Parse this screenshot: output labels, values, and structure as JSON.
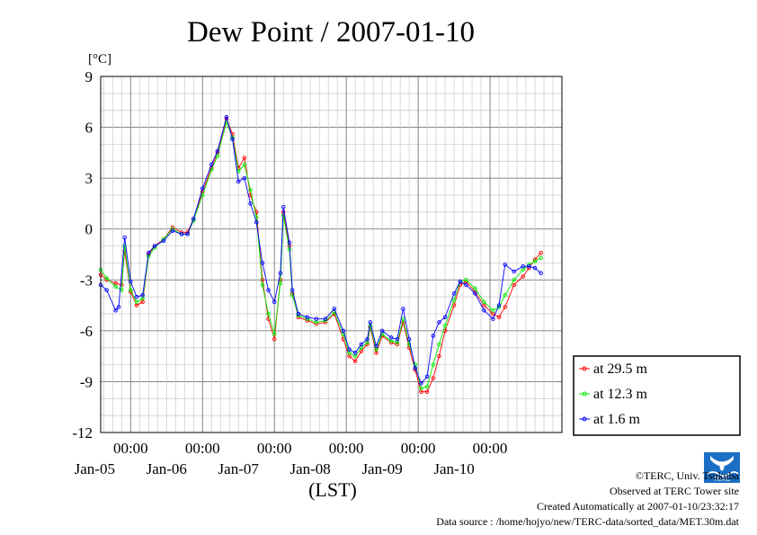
{
  "chart_data": {
    "type": "line",
    "title": "Dew Point / 2007-01-10",
    "ylabel": "[°C]",
    "xlabel": "(LST)",
    "ylim": [
      -12,
      9
    ],
    "yticks": [
      9,
      6,
      3,
      0,
      -3,
      -6,
      -9,
      -12
    ],
    "xlim": [
      "2007-01-04 14:00",
      "2007-01-11 00:00"
    ],
    "x_time_ticks": [
      {
        "time": "00:00",
        "date": "Jan-05"
      },
      {
        "time": "00:00",
        "date": "Jan-06"
      },
      {
        "time": "00:00",
        "date": "Jan-07"
      },
      {
        "time": "00:00",
        "date": "Jan-08"
      },
      {
        "time": "00:00",
        "date": "Jan-09"
      },
      {
        "time": "00:00",
        "date": "Jan-10"
      }
    ],
    "grid": true,
    "legend_position": "right",
    "series": [
      {
        "name": "at 29.5 m",
        "color": "#ff0000",
        "points": [
          [
            "2007-01-04 14:00",
            -2.7
          ],
          [
            "2007-01-04 16:00",
            -3.0
          ],
          [
            "2007-01-04 19:00",
            -3.2
          ],
          [
            "2007-01-04 21:00",
            -3.3
          ],
          [
            "2007-01-04 22:00",
            -1.3
          ],
          [
            "2007-01-05 00:00",
            -3.7
          ],
          [
            "2007-01-05 02:00",
            -4.5
          ],
          [
            "2007-01-05 04:00",
            -4.3
          ],
          [
            "2007-01-05 06:00",
            -1.5
          ],
          [
            "2007-01-05 08:00",
            -1.0
          ],
          [
            "2007-01-05 11:00",
            -0.6
          ],
          [
            "2007-01-05 14:00",
            0.1
          ],
          [
            "2007-01-05 17:00",
            -0.2
          ],
          [
            "2007-01-05 19:00",
            -0.2
          ],
          [
            "2007-01-05 21:00",
            0.6
          ],
          [
            "2007-01-06 00:00",
            2.2
          ],
          [
            "2007-01-06 03:00",
            3.6
          ],
          [
            "2007-01-06 05:00",
            4.5
          ],
          [
            "2007-01-06 08:00",
            6.5
          ],
          [
            "2007-01-06 10:00",
            5.6
          ],
          [
            "2007-01-06 12:00",
            3.6
          ],
          [
            "2007-01-06 14:00",
            4.2
          ],
          [
            "2007-01-06 16:00",
            2.0
          ],
          [
            "2007-01-06 18:00",
            1.0
          ],
          [
            "2007-01-06 20:00",
            -3.0
          ],
          [
            "2007-01-06 22:00",
            -5.3
          ],
          [
            "2007-01-07 00:00",
            -6.5
          ],
          [
            "2007-01-07 02:00",
            -3.0
          ],
          [
            "2007-01-07 03:00",
            1.0
          ],
          [
            "2007-01-07 05:00",
            -1.0
          ],
          [
            "2007-01-07 06:00",
            -3.8
          ],
          [
            "2007-01-07 08:00",
            -5.2
          ],
          [
            "2007-01-07 11:00",
            -5.4
          ],
          [
            "2007-01-07 14:00",
            -5.6
          ],
          [
            "2007-01-07 17:00",
            -5.5
          ],
          [
            "2007-01-07 20:00",
            -5.0
          ],
          [
            "2007-01-07 23:00",
            -6.5
          ],
          [
            "2007-01-08 01:00",
            -7.5
          ],
          [
            "2007-01-08 03:00",
            -7.8
          ],
          [
            "2007-01-08 05:00",
            -7.2
          ],
          [
            "2007-01-08 07:00",
            -6.8
          ],
          [
            "2007-01-08 08:00",
            -5.8
          ],
          [
            "2007-01-08 10:00",
            -7.3
          ],
          [
            "2007-01-08 12:00",
            -6.3
          ],
          [
            "2007-01-08 15:00",
            -6.7
          ],
          [
            "2007-01-08 17:00",
            -6.8
          ],
          [
            "2007-01-08 19:00",
            -5.5
          ],
          [
            "2007-01-08 21:00",
            -7.0
          ],
          [
            "2007-01-08 23:00",
            -8.3
          ],
          [
            "2007-01-09 01:00",
            -9.6
          ],
          [
            "2007-01-09 03:00",
            -9.6
          ],
          [
            "2007-01-09 05:00",
            -8.8
          ],
          [
            "2007-01-09 07:00",
            -7.5
          ],
          [
            "2007-01-09 09:00",
            -6.0
          ],
          [
            "2007-01-09 12:00",
            -4.5
          ],
          [
            "2007-01-09 14:00",
            -3.3
          ],
          [
            "2007-01-09 16:00",
            -3.1
          ],
          [
            "2007-01-09 19:00",
            -3.7
          ],
          [
            "2007-01-09 22:00",
            -4.5
          ],
          [
            "2007-01-10 01:00",
            -5.0
          ],
          [
            "2007-01-10 03:00",
            -5.2
          ],
          [
            "2007-01-10 05:00",
            -4.6
          ],
          [
            "2007-01-10 08:00",
            -3.3
          ],
          [
            "2007-01-10 11:00",
            -2.8
          ],
          [
            "2007-01-10 13:00",
            -2.3
          ],
          [
            "2007-01-10 15:00",
            -1.8
          ],
          [
            "2007-01-10 17:00",
            -1.4
          ]
        ]
      },
      {
        "name": "at 12.3 m",
        "color": "#00ee00",
        "points": [
          [
            "2007-01-04 14:00",
            -2.4
          ],
          [
            "2007-01-04 16:00",
            -2.9
          ],
          [
            "2007-01-04 19:00",
            -3.4
          ],
          [
            "2007-01-04 21:00",
            -3.6
          ],
          [
            "2007-01-04 22:00",
            -1.0
          ],
          [
            "2007-01-05 00:00",
            -3.6
          ],
          [
            "2007-01-05 02:00",
            -4.3
          ],
          [
            "2007-01-05 04:00",
            -4.1
          ],
          [
            "2007-01-05 06:00",
            -1.6
          ],
          [
            "2007-01-05 08:00",
            -1.1
          ],
          [
            "2007-01-05 11:00",
            -0.6
          ],
          [
            "2007-01-05 14:00",
            0.0
          ],
          [
            "2007-01-05 17:00",
            -0.3
          ],
          [
            "2007-01-05 19:00",
            -0.3
          ],
          [
            "2007-01-05 21:00",
            0.5
          ],
          [
            "2007-01-06 00:00",
            2.0
          ],
          [
            "2007-01-06 03:00",
            3.5
          ],
          [
            "2007-01-06 05:00",
            4.3
          ],
          [
            "2007-01-06 08:00",
            6.3
          ],
          [
            "2007-01-06 10:00",
            5.4
          ],
          [
            "2007-01-06 12:00",
            3.4
          ],
          [
            "2007-01-06 14:00",
            3.8
          ],
          [
            "2007-01-06 16:00",
            2.3
          ],
          [
            "2007-01-06 18:00",
            0.7
          ],
          [
            "2007-01-06 20:00",
            -3.3
          ],
          [
            "2007-01-06 22:00",
            -5.0
          ],
          [
            "2007-01-07 00:00",
            -6.2
          ],
          [
            "2007-01-07 02:00",
            -3.2
          ],
          [
            "2007-01-07 03:00",
            0.8
          ],
          [
            "2007-01-07 05:00",
            -1.2
          ],
          [
            "2007-01-07 06:00",
            -3.9
          ],
          [
            "2007-01-07 08:00",
            -5.1
          ],
          [
            "2007-01-07 11:00",
            -5.3
          ],
          [
            "2007-01-07 14:00",
            -5.5
          ],
          [
            "2007-01-07 17:00",
            -5.4
          ],
          [
            "2007-01-07 20:00",
            -4.9
          ],
          [
            "2007-01-07 23:00",
            -6.2
          ],
          [
            "2007-01-08 01:00",
            -7.3
          ],
          [
            "2007-01-08 03:00",
            -7.5
          ],
          [
            "2007-01-08 05:00",
            -7.0
          ],
          [
            "2007-01-08 07:00",
            -6.7
          ],
          [
            "2007-01-08 08:00",
            -5.7
          ],
          [
            "2007-01-08 10:00",
            -7.1
          ],
          [
            "2007-01-08 12:00",
            -6.2
          ],
          [
            "2007-01-08 15:00",
            -6.6
          ],
          [
            "2007-01-08 17:00",
            -6.7
          ],
          [
            "2007-01-08 19:00",
            -5.3
          ],
          [
            "2007-01-08 21:00",
            -6.8
          ],
          [
            "2007-01-08 23:00",
            -8.0
          ],
          [
            "2007-01-09 01:00",
            -9.4
          ],
          [
            "2007-01-09 03:00",
            -9.3
          ],
          [
            "2007-01-09 05:00",
            -8.0
          ],
          [
            "2007-01-09 07:00",
            -6.8
          ],
          [
            "2007-01-09 09:00",
            -5.7
          ],
          [
            "2007-01-09 12:00",
            -4.2
          ],
          [
            "2007-01-09 14:00",
            -3.1
          ],
          [
            "2007-01-09 16:00",
            -3.0
          ],
          [
            "2007-01-09 19:00",
            -3.5
          ],
          [
            "2007-01-09 22:00",
            -4.3
          ],
          [
            "2007-01-10 01:00",
            -4.8
          ],
          [
            "2007-01-10 03:00",
            -4.6
          ],
          [
            "2007-01-10 05:00",
            -3.9
          ],
          [
            "2007-01-10 08:00",
            -3.0
          ],
          [
            "2007-01-10 11:00",
            -2.4
          ],
          [
            "2007-01-10 13:00",
            -2.1
          ],
          [
            "2007-01-10 15:00",
            -1.9
          ],
          [
            "2007-01-10 17:00",
            -1.7
          ]
        ]
      },
      {
        "name": "at 1.6 m",
        "color": "#0000ff",
        "points": [
          [
            "2007-01-04 14:00",
            -3.3
          ],
          [
            "2007-01-04 16:00",
            -3.6
          ],
          [
            "2007-01-04 19:00",
            -4.8
          ],
          [
            "2007-01-04 20:00",
            -4.6
          ],
          [
            "2007-01-04 22:00",
            -0.5
          ],
          [
            "2007-01-05 00:00",
            -3.1
          ],
          [
            "2007-01-05 02:00",
            -4.0
          ],
          [
            "2007-01-05 04:00",
            -3.9
          ],
          [
            "2007-01-05 06:00",
            -1.4
          ],
          [
            "2007-01-05 08:00",
            -1.0
          ],
          [
            "2007-01-05 11:00",
            -0.7
          ],
          [
            "2007-01-05 14:00",
            -0.1
          ],
          [
            "2007-01-05 17:00",
            -0.3
          ],
          [
            "2007-01-05 19:00",
            -0.3
          ],
          [
            "2007-01-05 21:00",
            0.6
          ],
          [
            "2007-01-06 00:00",
            2.4
          ],
          [
            "2007-01-06 03:00",
            3.8
          ],
          [
            "2007-01-06 05:00",
            4.6
          ],
          [
            "2007-01-06 08:00",
            6.6
          ],
          [
            "2007-01-06 10:00",
            5.3
          ],
          [
            "2007-01-06 12:00",
            2.8
          ],
          [
            "2007-01-06 14:00",
            3.0
          ],
          [
            "2007-01-06 16:00",
            1.5
          ],
          [
            "2007-01-06 18:00",
            0.4
          ],
          [
            "2007-01-06 20:00",
            -2.0
          ],
          [
            "2007-01-06 22:00",
            -3.6
          ],
          [
            "2007-01-07 00:00",
            -4.3
          ],
          [
            "2007-01-07 02:00",
            -2.6
          ],
          [
            "2007-01-07 03:00",
            1.3
          ],
          [
            "2007-01-07 05:00",
            -0.8
          ],
          [
            "2007-01-07 06:00",
            -3.6
          ],
          [
            "2007-01-07 08:00",
            -5.0
          ],
          [
            "2007-01-07 11:00",
            -5.2
          ],
          [
            "2007-01-07 14:00",
            -5.3
          ],
          [
            "2007-01-07 17:00",
            -5.3
          ],
          [
            "2007-01-07 20:00",
            -4.7
          ],
          [
            "2007-01-07 23:00",
            -6.0
          ],
          [
            "2007-01-08 01:00",
            -7.1
          ],
          [
            "2007-01-08 03:00",
            -7.3
          ],
          [
            "2007-01-08 05:00",
            -6.8
          ],
          [
            "2007-01-08 07:00",
            -6.5
          ],
          [
            "2007-01-08 08:00",
            -5.5
          ],
          [
            "2007-01-08 10:00",
            -6.9
          ],
          [
            "2007-01-08 12:00",
            -6.0
          ],
          [
            "2007-01-08 15:00",
            -6.4
          ],
          [
            "2007-01-08 17:00",
            -6.5
          ],
          [
            "2007-01-08 19:00",
            -4.7
          ],
          [
            "2007-01-08 21:00",
            -6.5
          ],
          [
            "2007-01-08 23:00",
            -8.2
          ],
          [
            "2007-01-09 01:00",
            -9.1
          ],
          [
            "2007-01-09 03:00",
            -8.7
          ],
          [
            "2007-01-09 05:00",
            -6.3
          ],
          [
            "2007-01-09 07:00",
            -5.5
          ],
          [
            "2007-01-09 09:00",
            -5.2
          ],
          [
            "2007-01-09 12:00",
            -3.8
          ],
          [
            "2007-01-09 14:00",
            -3.1
          ],
          [
            "2007-01-09 16:00",
            -3.3
          ],
          [
            "2007-01-09 19:00",
            -3.8
          ],
          [
            "2007-01-09 22:00",
            -4.8
          ],
          [
            "2007-01-10 01:00",
            -5.3
          ],
          [
            "2007-01-10 03:00",
            -4.5
          ],
          [
            "2007-01-10 05:00",
            -2.1
          ],
          [
            "2007-01-10 08:00",
            -2.5
          ],
          [
            "2007-01-10 11:00",
            -2.2
          ],
          [
            "2007-01-10 13:00",
            -2.2
          ],
          [
            "2007-01-10 15:00",
            -2.3
          ],
          [
            "2007-01-10 17:00",
            -2.6
          ]
        ]
      }
    ]
  },
  "credits": {
    "copyright": "©TERC, Univ. Tsukuba",
    "observed": "Observed at TERC Tower site",
    "created": "Created Automatically at 2007-01-10/23:32:17",
    "source": "Data source : /home/hojyo/new/TERC-data/sorted_data/MET.30m.dat",
    "logo_text": "TERC"
  }
}
